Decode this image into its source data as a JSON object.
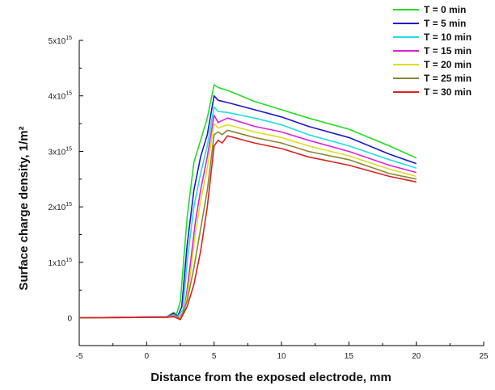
{
  "chart_data": {
    "type": "line",
    "xlabel": "Distance from the exposed electrode, mm",
    "ylabel": "Surface charge density, 1/m²",
    "xlim": [
      -5,
      25
    ],
    "ylim": [
      -500000000000000.0,
      5000000000000000.0
    ],
    "x_ticks": [
      -5,
      0,
      5,
      10,
      15,
      20,
      25
    ],
    "x_tick_labels": [
      "-5",
      "0",
      "5",
      "10",
      "15",
      "20",
      "25"
    ],
    "y_ticks": [
      0,
      1000000000000000.0,
      2000000000000000.0,
      3000000000000000.0,
      4000000000000000.0,
      5000000000000000.0
    ],
    "y_tick_labels": [
      {
        "base": "0",
        "exp": ""
      },
      {
        "base": "1x10",
        "exp": "15"
      },
      {
        "base": "2x10",
        "exp": "15"
      },
      {
        "base": "3x10",
        "exp": "15"
      },
      {
        "base": "4x10",
        "exp": "15"
      },
      {
        "base": "5x10",
        "exp": "15"
      }
    ],
    "grid": false,
    "legend_position": "top-right",
    "series": [
      {
        "name": "T = 0 min",
        "color": "#22dd22",
        "x": [
          -5,
          1.5,
          2.0,
          2.2,
          2.5,
          3.0,
          3.5,
          4.0,
          4.5,
          5.0,
          5.3,
          6,
          8,
          10,
          12,
          15,
          18,
          20
        ],
        "y": [
          0,
          20000000000000.0,
          100000000000000.0,
          50000000000000.0,
          300000000000000.0,
          1800000000000000.0,
          2800000000000000.0,
          3200000000000000.0,
          3600000000000000.0,
          4200000000000000.0,
          4150000000000000.0,
          4100000000000000.0,
          3900000000000000.0,
          3750000000000000.0,
          3600000000000000.0,
          3400000000000000.0,
          3100000000000000.0,
          2880000000000000.0
        ]
      },
      {
        "name": "T = 5 min",
        "color": "#1a1acc",
        "x": [
          -5,
          1.5,
          2.0,
          2.3,
          2.6,
          3.0,
          3.5,
          4.0,
          4.5,
          5.0,
          5.3,
          6,
          8,
          10,
          12,
          15,
          18,
          20
        ],
        "y": [
          0,
          20000000000000.0,
          80000000000000.0,
          30000000000000.0,
          200000000000000.0,
          1300000000000000.0,
          2300000000000000.0,
          2900000000000000.0,
          3300000000000000.0,
          4000000000000000.0,
          3920000000000000.0,
          3880000000000000.0,
          3750000000000000.0,
          3620000000000000.0,
          3450000000000000.0,
          3250000000000000.0,
          2950000000000000.0,
          2780000000000000.0
        ]
      },
      {
        "name": "T = 10 min",
        "color": "#22dddd",
        "x": [
          -5,
          1.5,
          2.0,
          2.3,
          2.7,
          3.0,
          3.5,
          4.0,
          4.5,
          5.0,
          5.3,
          6,
          8,
          10,
          12,
          15,
          18,
          20
        ],
        "y": [
          0,
          20000000000000.0,
          60000000000000.0,
          20000000000000.0,
          150000000000000.0,
          1000000000000000.0,
          2000000000000000.0,
          2600000000000000.0,
          3100000000000000.0,
          3800000000000000.0,
          3720000000000000.0,
          3700000000000000.0,
          3600000000000000.0,
          3480000000000000.0,
          3300000000000000.0,
          3100000000000000.0,
          2850000000000000.0,
          2700000000000000.0
        ]
      },
      {
        "name": "T = 15 min",
        "color": "#dd22dd",
        "x": [
          -5,
          1.5,
          2.0,
          2.4,
          2.8,
          3.2,
          3.6,
          4.0,
          4.5,
          5.0,
          5.3,
          6,
          8,
          10,
          12,
          15,
          18,
          20
        ],
        "y": [
          0,
          20000000000000.0,
          50000000000000.0,
          0.0,
          120000000000000.0,
          900000000000000.0,
          1700000000000000.0,
          2300000000000000.0,
          2900000000000000.0,
          3650000000000000.0,
          3520000000000000.0,
          3600000000000000.0,
          3450000000000000.0,
          3350000000000000.0,
          3200000000000000.0,
          3000000000000000.0,
          2750000000000000.0,
          2620000000000000.0
        ]
      },
      {
        "name": "T = 20 min",
        "color": "#dddd22",
        "x": [
          -5,
          1.5,
          2.0,
          2.4,
          2.8,
          3.2,
          3.6,
          4.0,
          4.5,
          5.0,
          5.3,
          6,
          8,
          10,
          12,
          15,
          18,
          20
        ],
        "y": [
          0,
          10000000000000.0,
          40000000000000.0,
          -10000000000000.0,
          100000000000000.0,
          700000000000000.0,
          1500000000000000.0,
          2100000000000000.0,
          2700000000000000.0,
          3500000000000000.0,
          3420000000000000.0,
          3480000000000000.0,
          3350000000000000.0,
          3250000000000000.0,
          3100000000000000.0,
          2920000000000000.0,
          2680000000000000.0,
          2550000000000000.0
        ]
      },
      {
        "name": "T = 25 min",
        "color": "#888833",
        "x": [
          -5,
          1.5,
          2.0,
          2.5,
          3.0,
          3.5,
          4.0,
          4.5,
          5.0,
          5.3,
          5.6,
          6,
          8,
          10,
          12,
          15,
          18,
          20
        ],
        "y": [
          0,
          10000000000000.0,
          30000000000000.0,
          -20000000000000.0,
          300000000000000.0,
          900000000000000.0,
          1600000000000000.0,
          2300000000000000.0,
          3300000000000000.0,
          3350000000000000.0,
          3300000000000000.0,
          3380000000000000.0,
          3250000000000000.0,
          3150000000000000.0,
          3000000000000000.0,
          2850000000000000.0,
          2600000000000000.0,
          2500000000000000.0
        ]
      },
      {
        "name": "T = 30 min",
        "color": "#dd2222",
        "x": [
          -5,
          1.5,
          2.0,
          2.5,
          3.0,
          3.5,
          4.0,
          4.5,
          5.0,
          5.3,
          5.6,
          6,
          8,
          10,
          12,
          15,
          18,
          20
        ],
        "y": [
          0,
          10000000000000.0,
          20000000000000.0,
          -30000000000000.0,
          200000000000000.0,
          600000000000000.0,
          1200000000000000.0,
          2000000000000000.0,
          3100000000000000.0,
          3200000000000000.0,
          3150000000000000.0,
          3280000000000000.0,
          3150000000000000.0,
          3050000000000000.0,
          2900000000000000.0,
          2750000000000000.0,
          2550000000000000.0,
          2450000000000000.0
        ]
      }
    ]
  }
}
